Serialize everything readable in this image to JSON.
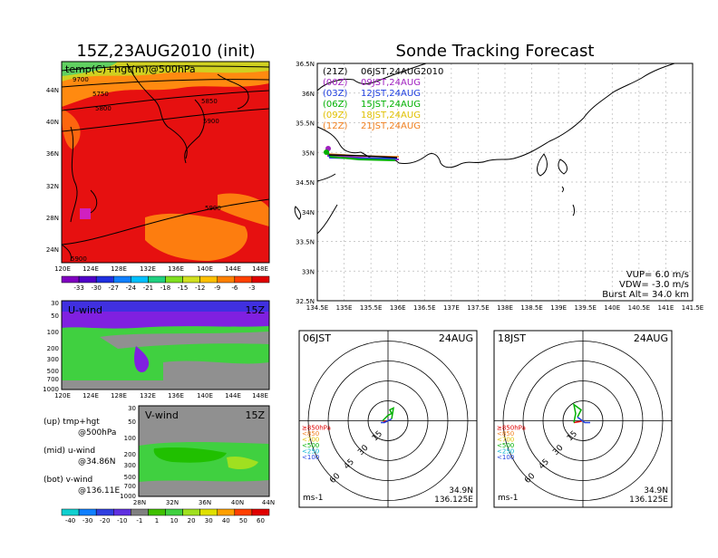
{
  "left_title": "15Z,23AUG2010 (init)",
  "right_title": "Sonde Tracking Forecast",
  "top_map": {
    "label": "temp(C)+hgt(m)@500hPa",
    "lat_ticks": [
      "44N",
      "40N",
      "36N",
      "32N",
      "28N",
      "24N"
    ],
    "lon_ticks": [
      "120E",
      "124E",
      "128E",
      "132E",
      "136E",
      "140E",
      "144E",
      "148E"
    ],
    "contours": [
      "9700",
      "5750",
      "5800",
      "5850",
      "5900",
      "5900",
      "5900"
    ],
    "colorbar": [
      "-33",
      "-30",
      "-27",
      "-24",
      "-21",
      "-18",
      "-15",
      "-12",
      "-9",
      "-6",
      "-3"
    ]
  },
  "uwind": {
    "label": "U-wind",
    "time": "15Z",
    "p_ticks": [
      "30",
      "50",
      "100",
      "200",
      "300",
      "500",
      "700",
      "1000"
    ],
    "lon_ticks": [
      "120E",
      "124E",
      "128E",
      "132E",
      "136E",
      "140E",
      "144E",
      "148E"
    ]
  },
  "vwind": {
    "label": "V-wind",
    "time": "15Z",
    "p_ticks": [
      "30",
      "50",
      "100",
      "200",
      "300",
      "500",
      "700",
      "1000"
    ],
    "lat_ticks": [
      "28N",
      "32N",
      "36N",
      "40N",
      "44N"
    ],
    "colorbar": [
      "-40",
      "-30",
      "-20",
      "-10",
      "-1",
      "1",
      "10",
      "20",
      "30",
      "40",
      "50",
      "60"
    ]
  },
  "legend_notes": [
    {
      "a": "(up) tmp+hgt",
      "b": "@500hPa"
    },
    {
      "a": "(mid) u-wind",
      "b": "@34.86N"
    },
    {
      "a": "(bot) v-wind",
      "b": "@136.11E"
    }
  ],
  "track_map": {
    "lat_ticks": [
      "36.5N",
      "36N",
      "35.5N",
      "35N",
      "34.5N",
      "34N",
      "33.5N",
      "33N",
      "32.5N"
    ],
    "lon_ticks": [
      "134.5E",
      "135E",
      "135.5E",
      "136E",
      "136.5E",
      "137E",
      "137.5E",
      "138E",
      "138.5E",
      "139E",
      "139.5E",
      "140E",
      "140.5E",
      "141E",
      "141.5E"
    ],
    "runs": [
      {
        "time": "(21Z)",
        "label": "06JST,24AUG2010",
        "color": "#000000"
      },
      {
        "time": "(00Z)",
        "label": "09JST,24AUG",
        "color": "#a020c0"
      },
      {
        "time": "(03Z)",
        "label": "12JST,24AUG",
        "color": "#2040e0"
      },
      {
        "time": "(06Z)",
        "label": "15JST,24AUG",
        "color": "#00b000"
      },
      {
        "time": "(09Z)",
        "label": "18JST,24AUG",
        "color": "#e0c000"
      },
      {
        "time": "(12Z)",
        "label": "21JST,24AUG",
        "color": "#f08020"
      }
    ],
    "params": [
      "VUP= 6.0 m/s",
      "VDW= -3.0 m/s",
      "Burst Alt= 34.0 km"
    ]
  },
  "hodo_left": {
    "jst": "06JST",
    "date": "24AUG",
    "ring_labels": [
      "15",
      "30",
      "45",
      "60"
    ],
    "pressure_legend": [
      {
        "t": "≥850hPa",
        "c": "#e00000"
      },
      {
        "t": "<850",
        "c": "#f08020"
      },
      {
        "t": "<700",
        "c": "#e0c000"
      },
      {
        "t": "<500",
        "c": "#00b000"
      },
      {
        "t": "<250",
        "c": "#00b0d0"
      },
      {
        "t": "<100",
        "c": "#2040e0"
      }
    ],
    "unit": "ms-1",
    "loc_lat": "34.9N",
    "loc_lon": "136.125E"
  },
  "hodo_right": {
    "jst": "18JST",
    "date": "24AUG",
    "ring_labels": [
      "15",
      "30",
      "45",
      "60"
    ],
    "pressure_legend": [
      {
        "t": "≥850hPa",
        "c": "#e00000"
      },
      {
        "t": "<850",
        "c": "#f08020"
      },
      {
        "t": "<700",
        "c": "#e0c000"
      },
      {
        "t": "<500",
        "c": "#00b000"
      },
      {
        "t": "<250",
        "c": "#00b0d0"
      },
      {
        "t": "<100",
        "c": "#2040e0"
      }
    ],
    "unit": "ms-1",
    "loc_lat": "34.9N",
    "loc_lon": "136.125E"
  },
  "colors": {
    "temp_bar": [
      "#8000c0",
      "#5000c8",
      "#2030e0",
      "#1080ff",
      "#00c0ff",
      "#20d080",
      "#80e020",
      "#d0e020",
      "#ffc000",
      "#ff8000",
      "#ff4000",
      "#e00000"
    ],
    "wind_bar": [
      "#10d0d0",
      "#1080ff",
      "#3040e0",
      "#6030e0",
      "#808080",
      "#40c000",
      "#40d040",
      "#a0e020",
      "#e0e000",
      "#ffa000",
      "#ff4000",
      "#e00000"
    ]
  }
}
